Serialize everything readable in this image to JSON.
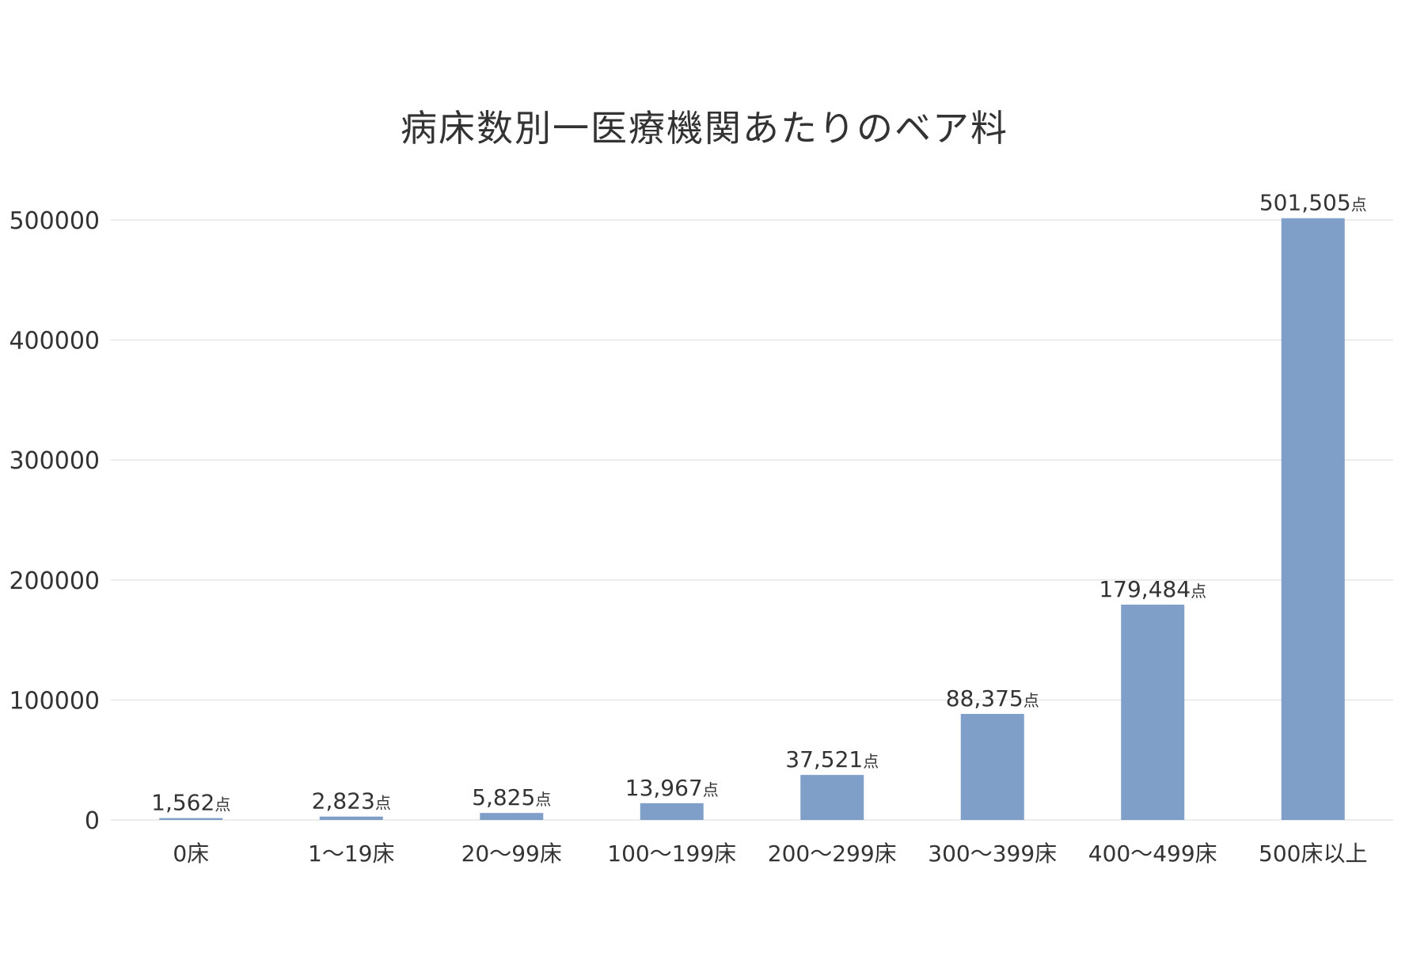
{
  "chart_data": {
    "type": "bar",
    "title": "病床数別一医療機関あたりのベア料",
    "xlabel": "",
    "ylabel": "",
    "categories": [
      "0床",
      "1〜19床",
      "20〜99床",
      "100〜199床",
      "200〜299床",
      "300〜399床",
      "400〜499床",
      "500床以上"
    ],
    "values": [
      1562,
      2823,
      5825,
      13967,
      37521,
      88375,
      179484,
      501505
    ],
    "value_labels": [
      "1,562",
      "2,823",
      "5,825",
      "13,967",
      "37,521",
      "88,375",
      "179,484",
      "501,505"
    ],
    "value_suffix": "点",
    "ylim": [
      0,
      500000
    ],
    "yticks": [
      "0",
      "100000",
      "200000",
      "300000",
      "400000",
      "500000"
    ],
    "ytick_values": [
      0,
      100000,
      200000,
      300000,
      400000,
      500000
    ],
    "grid": true,
    "legend": "none",
    "colors": {
      "bar": "#7f9fc9",
      "grid": "#e6e6e6",
      "text": "#333333"
    }
  }
}
